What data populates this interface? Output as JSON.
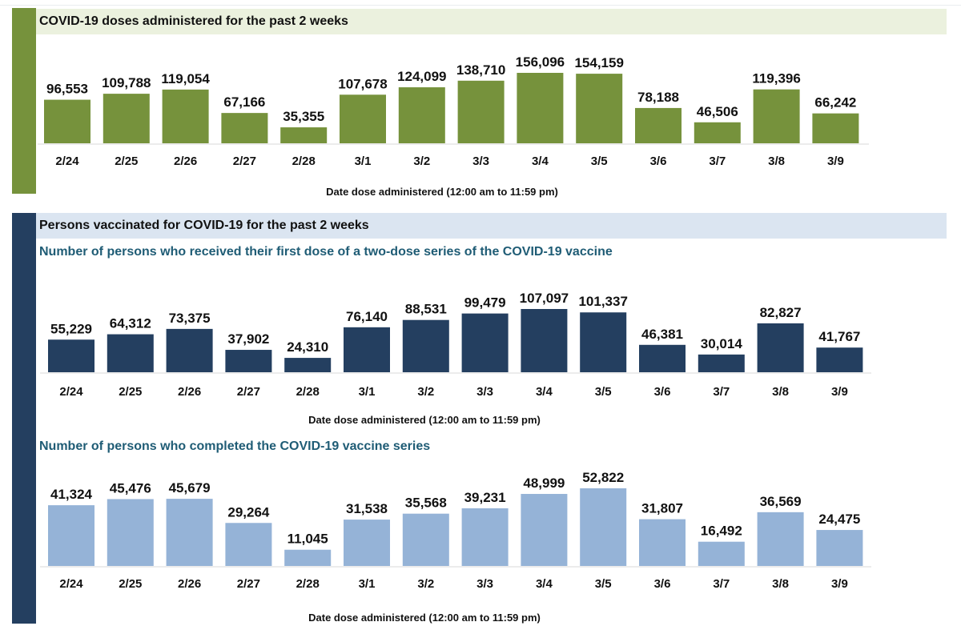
{
  "sections": {
    "doses_title": "COVID-19 doses administered for the past 2 weeks",
    "persons_title": "Persons vaccinated for COVID-19 for the past 2 weeks",
    "first_dose_subtitle": "Number of persons who received their first dose of a two-dose series of the COVID-19 vaccine",
    "completed_subtitle": "Number of persons who completed the COVID-19 vaccine series"
  },
  "colors": {
    "doses_bar": "#76923c",
    "first_dose_bar": "#243f60",
    "completed_bar": "#95b3d7"
  },
  "chart_data": [
    {
      "type": "bar",
      "title": "COVID-19 doses administered for the past 2 weeks",
      "xlabel": "Date dose administered (12:00 am to 11:59 pm)",
      "ylabel": "",
      "categories": [
        "2/24",
        "2/25",
        "2/26",
        "2/27",
        "2/28",
        "3/1",
        "3/2",
        "3/3",
        "3/4",
        "3/5",
        "3/6",
        "3/7",
        "3/8",
        "3/9"
      ],
      "values": [
        96553,
        109788,
        119054,
        67166,
        35355,
        107678,
        124099,
        138710,
        156096,
        154159,
        78188,
        46506,
        119396,
        66242
      ],
      "labels": [
        "96,553",
        "109,788",
        "119,054",
        "67,166",
        "35,355",
        "107,678",
        "124,099",
        "138,710",
        "156,096",
        "154,159",
        "78,188",
        "46,506",
        "119,396",
        "66,242"
      ],
      "color": "#76923c",
      "grid": false
    },
    {
      "type": "bar",
      "title": "Number of persons who received their first dose of a two-dose series of the COVID-19 vaccine",
      "xlabel": "Date dose administered (12:00 am to 11:59 pm)",
      "ylabel": "",
      "categories": [
        "2/24",
        "2/25",
        "2/26",
        "2/27",
        "2/28",
        "3/1",
        "3/2",
        "3/3",
        "3/4",
        "3/5",
        "3/6",
        "3/7",
        "3/8",
        "3/9"
      ],
      "values": [
        55229,
        64312,
        73375,
        37902,
        24310,
        76140,
        88531,
        99479,
        107097,
        101337,
        46381,
        30014,
        82827,
        41767
      ],
      "labels": [
        "55,229",
        "64,312",
        "73,375",
        "37,902",
        "24,310",
        "76,140",
        "88,531",
        "99,479",
        "107,097",
        "101,337",
        "46,381",
        "30,014",
        "82,827",
        "41,767"
      ],
      "color": "#243f60",
      "grid": false
    },
    {
      "type": "bar",
      "title": "Number of persons who completed the COVID-19 vaccine series",
      "xlabel": "Date dose administered (12:00 am to 11:59 pm)",
      "ylabel": "",
      "categories": [
        "2/24",
        "2/25",
        "2/26",
        "2/27",
        "2/28",
        "3/1",
        "3/2",
        "3/3",
        "3/4",
        "3/5",
        "3/6",
        "3/7",
        "3/8",
        "3/9"
      ],
      "values": [
        41324,
        45476,
        45679,
        29264,
        11045,
        31538,
        35568,
        39231,
        48999,
        52822,
        31807,
        16492,
        36569,
        24475
      ],
      "labels": [
        "41,324",
        "45,476",
        "45,679",
        "29,264",
        "11,045",
        "31,538",
        "35,568",
        "39,231",
        "48,999",
        "52,822",
        "31,807",
        "16,492",
        "36,569",
        "24,475"
      ],
      "color": "#95b3d7",
      "grid": false
    }
  ]
}
